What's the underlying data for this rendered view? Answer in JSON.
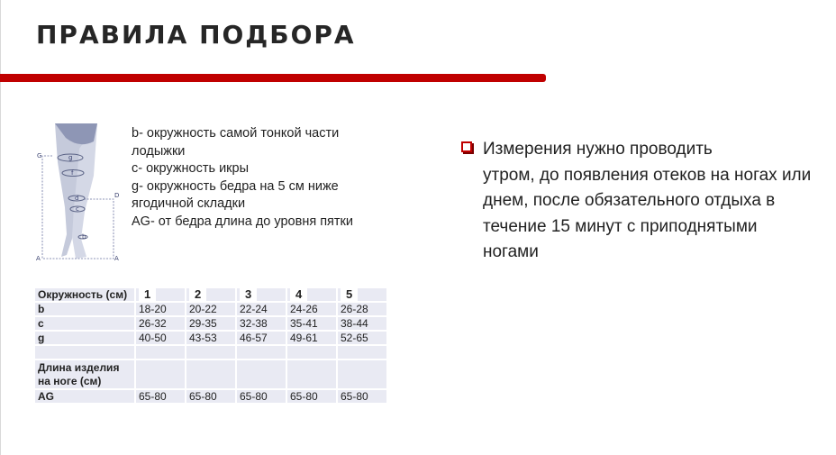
{
  "title": "ПРАВИЛА ПОДБОРА",
  "colors": {
    "accent": "#c00000",
    "table_bg": "#e9eaf3"
  },
  "diagram_labels": {
    "g": "g",
    "f": "f",
    "d": "d",
    "c": "c",
    "b": "b",
    "G": "G",
    "D": "D",
    "A1": "A",
    "A2": "A"
  },
  "description": [
    "b- окружность самой тонкой части лодыжки",
    "c- окружность икры",
    "g- окружность бедра на 5 см ниже ягодичной складки",
    "AG- от бедра длина до уровня пятки"
  ],
  "note": {
    "icon": "square-bullet-icon",
    "first": "Измерения нужно проводить",
    "rest": "утром, до появления отеков на ногах или днем, после обязательного отдыха в течение 15 минут с приподнятыми ногами"
  },
  "table": {
    "header": {
      "label": "Окружность (см)",
      "sizes": [
        "1",
        "2",
        "3",
        "4",
        "5"
      ]
    },
    "rows": [
      {
        "label": "b",
        "values": [
          "18-20",
          "20-22",
          "22-24",
          "24-26",
          "26-28"
        ]
      },
      {
        "label": "c",
        "values": [
          "26-32",
          "29-35",
          "32-38",
          "35-41",
          "38-44"
        ]
      },
      {
        "label": "g",
        "values": [
          "40-50",
          "43-53",
          "46-57",
          "49-61",
          "52-65"
        ]
      },
      {
        "label": "",
        "values": [
          "",
          "",
          "",
          "",
          ""
        ]
      },
      {
        "label": "Длина изделия на ноге (см)",
        "values": [
          "",
          "",
          "",
          "",
          ""
        ]
      },
      {
        "label": "AG",
        "values": [
          "65-80",
          "65-80",
          "65-80",
          "65-80",
          "65-80"
        ]
      }
    ]
  }
}
